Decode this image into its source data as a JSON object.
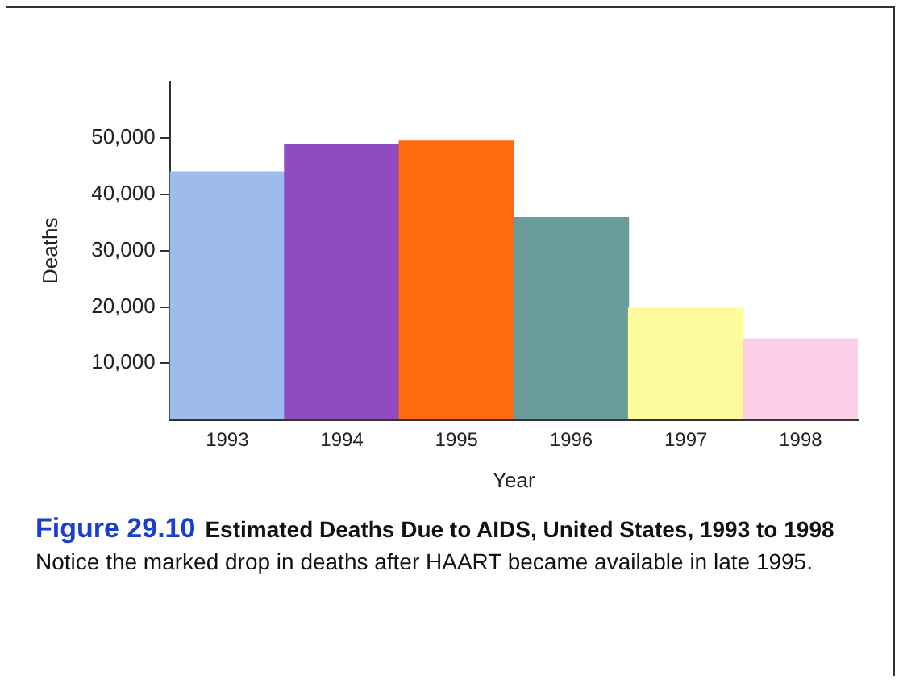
{
  "chart_data": {
    "type": "bar",
    "title": "Estimated Deaths Due to AIDS, United States, 1993 to 1998",
    "subtitle": "Notice the marked drop in deaths after HAART became available in late 1995.",
    "annotations": [
      "Figure 29.10"
    ],
    "xlabel": "Year",
    "ylabel": "Deaths",
    "categories": [
      "1993",
      "1994",
      "1995",
      "1996",
      "1997",
      "1998"
    ],
    "values": [
      44000,
      48800,
      49500,
      35900,
      19800,
      14300
    ],
    "colors": [
      "#9dbcec",
      "#8e4cc0",
      "#ff6a10",
      "#6a9c9c",
      "#fdfb9c",
      "#fbcfe8"
    ],
    "ylim": [
      0,
      60000
    ],
    "yticks": [
      {
        "value": 10000,
        "label": "10,000"
      },
      {
        "value": 20000,
        "label": "20,000"
      },
      {
        "value": 30000,
        "label": "30,000"
      },
      {
        "value": 40000,
        "label": "40,000"
      },
      {
        "value": 50000,
        "label": "50,000"
      }
    ],
    "grid": false,
    "legend": false
  }
}
